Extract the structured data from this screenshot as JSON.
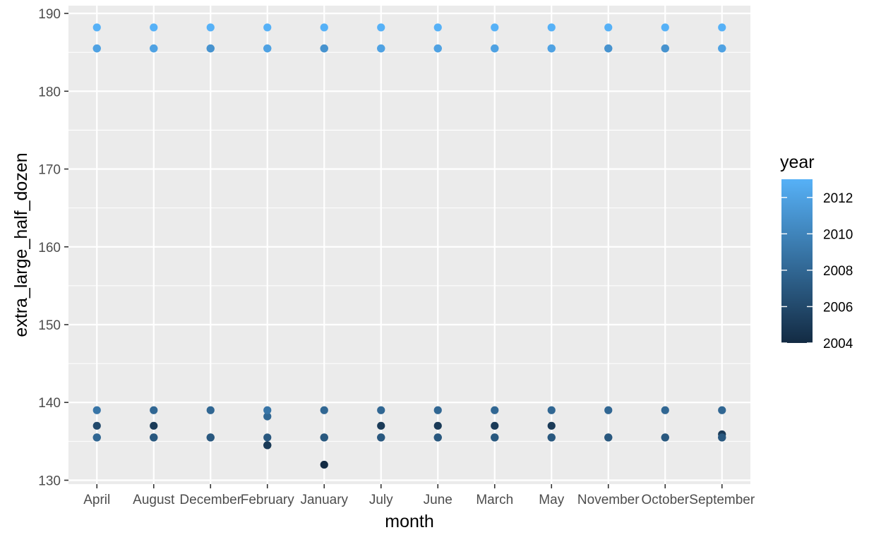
{
  "chart_data": {
    "type": "scatter",
    "title": "",
    "xlabel": "month",
    "ylabel": "extra_large_half_dozen",
    "categories": [
      "April",
      "August",
      "December",
      "February",
      "January",
      "July",
      "June",
      "March",
      "May",
      "November",
      "October",
      "September"
    ],
    "ylim": [
      129.5,
      191
    ],
    "y_ticks": [
      130,
      140,
      150,
      160,
      170,
      180,
      190
    ],
    "grid": true,
    "legend": {
      "title": "year",
      "position": "right",
      "type": "colorbar",
      "range": [
        2004,
        2013
      ],
      "ticks": [
        2004,
        2006,
        2008,
        2010,
        2012
      ],
      "color_low": "#132B43",
      "color_high": "#56B1F7"
    },
    "points": [
      {
        "x": "April",
        "y": 188.2,
        "year": 2013
      },
      {
        "x": "April",
        "y": 185.5,
        "year": 2012
      },
      {
        "x": "April",
        "y": 185.5,
        "year": 2011
      },
      {
        "x": "April",
        "y": 139,
        "year": 2009
      },
      {
        "x": "April",
        "y": 137,
        "year": 2006
      },
      {
        "x": "April",
        "y": 135.5,
        "year": 2008
      },
      {
        "x": "April",
        "y": 135.5,
        "year": 2007
      },
      {
        "x": "August",
        "y": 188.2,
        "year": 2013
      },
      {
        "x": "August",
        "y": 185.5,
        "year": 2012
      },
      {
        "x": "August",
        "y": 185.5,
        "year": 2011
      },
      {
        "x": "August",
        "y": 139,
        "year": 2008
      },
      {
        "x": "August",
        "y": 137,
        "year": 2005
      },
      {
        "x": "August",
        "y": 135.5,
        "year": 2007
      },
      {
        "x": "August",
        "y": 135.5,
        "year": 2006
      },
      {
        "x": "December",
        "y": 188.2,
        "year": 2013
      },
      {
        "x": "December",
        "y": 185.5,
        "year": 2011
      },
      {
        "x": "December",
        "y": 185.5,
        "year": 2010
      },
      {
        "x": "December",
        "y": 139,
        "year": 2008
      },
      {
        "x": "December",
        "y": 135.5,
        "year": 2007
      },
      {
        "x": "December",
        "y": 135.5,
        "year": 2006
      },
      {
        "x": "February",
        "y": 188.2,
        "year": 2013
      },
      {
        "x": "February",
        "y": 185.5,
        "year": 2012
      },
      {
        "x": "February",
        "y": 185.5,
        "year": 2011
      },
      {
        "x": "February",
        "y": 139,
        "year": 2009
      },
      {
        "x": "February",
        "y": 138.2,
        "year": 2008
      },
      {
        "x": "February",
        "y": 135.5,
        "year": 2007
      },
      {
        "x": "February",
        "y": 134.5,
        "year": 2005
      },
      {
        "x": "February",
        "y": 134.5,
        "year": 2004
      },
      {
        "x": "January",
        "y": 188.2,
        "year": 2013
      },
      {
        "x": "January",
        "y": 185.5,
        "year": 2011
      },
      {
        "x": "January",
        "y": 185.5,
        "year": 2010
      },
      {
        "x": "January",
        "y": 139,
        "year": 2008
      },
      {
        "x": "January",
        "y": 135.5,
        "year": 2007
      },
      {
        "x": "January",
        "y": 135.5,
        "year": 2006
      },
      {
        "x": "January",
        "y": 132,
        "year": 2004
      },
      {
        "x": "July",
        "y": 188.2,
        "year": 2013
      },
      {
        "x": "July",
        "y": 185.5,
        "year": 2012
      },
      {
        "x": "July",
        "y": 185.5,
        "year": 2011
      },
      {
        "x": "July",
        "y": 139,
        "year": 2008
      },
      {
        "x": "July",
        "y": 137,
        "year": 2005
      },
      {
        "x": "July",
        "y": 135.5,
        "year": 2007
      },
      {
        "x": "July",
        "y": 135.5,
        "year": 2006
      },
      {
        "x": "June",
        "y": 188.2,
        "year": 2013
      },
      {
        "x": "June",
        "y": 185.5,
        "year": 2012
      },
      {
        "x": "June",
        "y": 185.5,
        "year": 2011
      },
      {
        "x": "June",
        "y": 139,
        "year": 2008
      },
      {
        "x": "June",
        "y": 137,
        "year": 2005
      },
      {
        "x": "June",
        "y": 135.5,
        "year": 2007
      },
      {
        "x": "June",
        "y": 135.5,
        "year": 2006
      },
      {
        "x": "March",
        "y": 188.2,
        "year": 2013
      },
      {
        "x": "March",
        "y": 185.5,
        "year": 2012
      },
      {
        "x": "March",
        "y": 185.5,
        "year": 2011
      },
      {
        "x": "March",
        "y": 139,
        "year": 2008
      },
      {
        "x": "March",
        "y": 137,
        "year": 2005
      },
      {
        "x": "March",
        "y": 135.5,
        "year": 2007
      },
      {
        "x": "March",
        "y": 135.5,
        "year": 2006
      },
      {
        "x": "May",
        "y": 188.2,
        "year": 2013
      },
      {
        "x": "May",
        "y": 185.5,
        "year": 2012
      },
      {
        "x": "May",
        "y": 185.5,
        "year": 2011
      },
      {
        "x": "May",
        "y": 139,
        "year": 2008
      },
      {
        "x": "May",
        "y": 137,
        "year": 2005
      },
      {
        "x": "May",
        "y": 135.5,
        "year": 2007
      },
      {
        "x": "May",
        "y": 135.5,
        "year": 2006
      },
      {
        "x": "November",
        "y": 188.2,
        "year": 2013
      },
      {
        "x": "November",
        "y": 185.5,
        "year": 2011
      },
      {
        "x": "November",
        "y": 185.5,
        "year": 2010
      },
      {
        "x": "November",
        "y": 139,
        "year": 2008
      },
      {
        "x": "November",
        "y": 135.5,
        "year": 2007
      },
      {
        "x": "November",
        "y": 135.5,
        "year": 2006
      },
      {
        "x": "October",
        "y": 188.2,
        "year": 2013
      },
      {
        "x": "October",
        "y": 185.5,
        "year": 2011
      },
      {
        "x": "October",
        "y": 185.5,
        "year": 2010
      },
      {
        "x": "October",
        "y": 139,
        "year": 2008
      },
      {
        "x": "October",
        "y": 135.5,
        "year": 2007
      },
      {
        "x": "October",
        "y": 135.5,
        "year": 2006
      },
      {
        "x": "September",
        "y": 188.2,
        "year": 2013
      },
      {
        "x": "September",
        "y": 185.5,
        "year": 2012
      },
      {
        "x": "September",
        "y": 185.5,
        "year": 2011
      },
      {
        "x": "September",
        "y": 139,
        "year": 2008
      },
      {
        "x": "September",
        "y": 135.9,
        "year": 2005
      },
      {
        "x": "September",
        "y": 135.5,
        "year": 2007
      },
      {
        "x": "September",
        "y": 135.5,
        "year": 2006
      }
    ]
  }
}
